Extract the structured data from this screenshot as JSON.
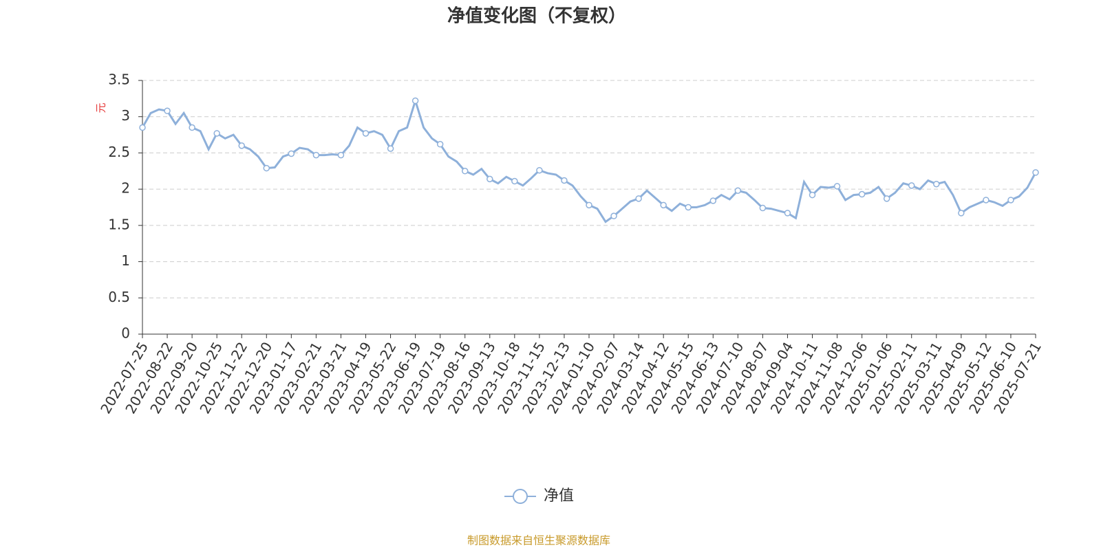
{
  "chart_data": {
    "type": "line",
    "title": "净值变化图（不复权）",
    "y_label": "元",
    "source": "制图数据来自恒生聚源数据库",
    "categories": [
      "2022-07-25",
      null,
      null,
      "2022-08-22",
      null,
      null,
      "2022-09-20",
      null,
      null,
      "2022-10-25",
      null,
      null,
      "2022-11-22",
      null,
      null,
      "2022-12-20",
      null,
      null,
      "2023-01-17",
      null,
      null,
      "2023-02-21",
      null,
      null,
      "2023-03-21",
      null,
      null,
      "2023-04-19",
      null,
      null,
      "2023-05-22",
      null,
      null,
      "2023-06-19",
      null,
      null,
      "2023-07-19",
      null,
      null,
      "2023-08-16",
      null,
      null,
      "2023-09-13",
      null,
      null,
      "2023-10-18",
      null,
      null,
      "2023-11-15",
      null,
      null,
      "2023-12-13",
      null,
      null,
      "2024-01-10",
      null,
      null,
      "2024-02-07",
      null,
      null,
      "2024-03-14",
      null,
      null,
      "2024-04-12",
      null,
      null,
      "2024-05-15",
      null,
      null,
      "2024-06-13",
      null,
      null,
      "2024-07-10",
      null,
      null,
      "2024-08-07",
      null,
      null,
      "2024-09-04",
      null,
      null,
      "2024-10-11",
      null,
      null,
      "2024-11-08",
      null,
      null,
      "2024-12-06",
      null,
      null,
      "2025-01-06",
      null,
      null,
      "2025-02-11",
      null,
      null,
      "2025-03-11",
      null,
      null,
      "2025-04-09",
      null,
      null,
      "2025-05-12",
      null,
      null,
      "2025-06-10",
      null,
      null,
      "2025-07-21"
    ],
    "series": [
      {
        "name": "净值",
        "color": "#8eb0da",
        "values": [
          2.85,
          3.05,
          3.1,
          3.08,
          2.9,
          3.05,
          2.85,
          2.8,
          2.55,
          2.77,
          2.7,
          2.75,
          2.6,
          2.55,
          2.45,
          2.29,
          2.3,
          2.45,
          2.49,
          2.57,
          2.55,
          2.47,
          2.47,
          2.48,
          2.47,
          2.6,
          2.85,
          2.77,
          2.8,
          2.75,
          2.56,
          2.8,
          2.85,
          3.22,
          2.85,
          2.7,
          2.62,
          2.45,
          2.38,
          2.25,
          2.2,
          2.28,
          2.14,
          2.08,
          2.17,
          2.11,
          2.05,
          2.15,
          2.26,
          2.22,
          2.2,
          2.12,
          2.05,
          1.9,
          1.78,
          1.73,
          1.55,
          1.63,
          1.73,
          1.83,
          1.87,
          1.98,
          1.88,
          1.78,
          1.7,
          1.8,
          1.75,
          1.75,
          1.78,
          1.84,
          1.92,
          1.86,
          1.98,
          1.95,
          1.85,
          1.74,
          1.73,
          1.7,
          1.67,
          1.6,
          2.1,
          1.92,
          2.03,
          2.02,
          2.04,
          1.85,
          1.92,
          1.93,
          1.95,
          2.03,
          1.87,
          1.95,
          2.08,
          2.05,
          2.0,
          2.12,
          2.07,
          2.1,
          1.92,
          1.67,
          1.75,
          1.8,
          1.85,
          1.82,
          1.77,
          1.85,
          1.9,
          2.02,
          2.23
        ]
      }
    ],
    "ylim": [
      0,
      3.5
    ],
    "yticks": [
      0,
      0.5,
      1,
      1.5,
      2,
      2.5,
      3,
      3.5
    ],
    "grid": true
  }
}
